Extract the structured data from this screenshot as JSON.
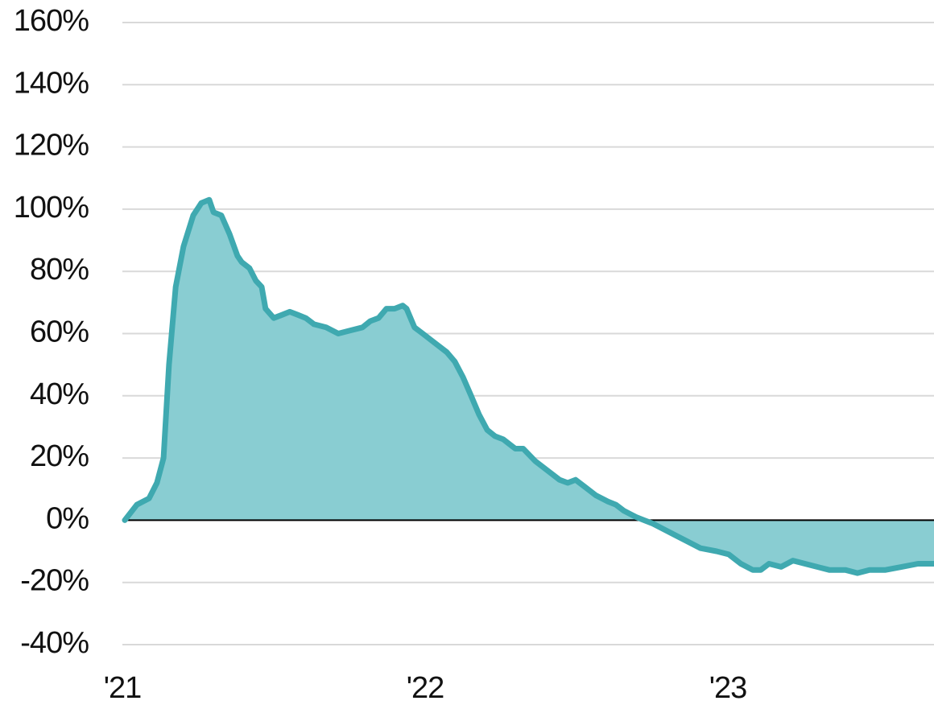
{
  "chart_data": {
    "type": "area",
    "x": [
      2021.008,
      2021.048,
      2021.088,
      2021.114,
      2021.136,
      2021.154,
      2021.176,
      2021.202,
      2021.234,
      2021.261,
      2021.287,
      2021.301,
      2021.327,
      2021.354,
      2021.38,
      2021.394,
      2021.42,
      2021.441,
      2021.46,
      2021.473,
      2021.5,
      2021.527,
      2021.553,
      2021.58,
      2021.606,
      2021.633,
      2021.673,
      2021.713,
      2021.753,
      2021.793,
      2021.819,
      2021.846,
      2021.872,
      2021.899,
      2021.926,
      2021.939,
      2021.965,
      2021.992,
      2022.032,
      2022.072,
      2022.098,
      2022.125,
      2022.152,
      2022.178,
      2022.205,
      2022.231,
      2022.258,
      2022.298,
      2022.324,
      2022.364,
      2022.404,
      2022.444,
      2022.471,
      2022.497,
      2022.524,
      2022.564,
      2022.604,
      2022.63,
      2022.657,
      2022.697,
      2022.723,
      2022.75,
      2022.79,
      2022.83,
      2022.87,
      2022.91,
      2022.963,
      2023.003,
      2023.043,
      2023.082,
      2023.109,
      2023.136,
      2023.176,
      2023.215,
      2023.255,
      2023.295,
      2023.335,
      2023.388,
      2023.428,
      2023.468,
      2023.521,
      2023.574,
      2023.628,
      2023.681
    ],
    "series": [
      {
        "color": "#3fa9b0",
        "fill": "#89cdd2",
        "values": [
          0,
          5,
          7,
          12,
          20,
          50,
          75,
          88,
          98,
          102,
          103,
          99,
          98,
          92,
          85,
          83,
          81,
          77,
          75,
          68,
          65,
          66,
          67,
          66,
          65,
          63,
          62,
          60,
          61,
          62,
          64,
          65,
          68,
          68,
          69,
          68,
          62,
          60,
          57,
          54,
          51,
          46,
          40,
          34,
          29,
          27,
          26,
          23,
          23,
          19,
          16,
          13,
          12,
          13,
          11,
          8,
          6,
          5,
          3,
          1,
          0,
          -1,
          -3,
          -5,
          -7,
          -9,
          -10,
          -11,
          -14,
          -16,
          -16,
          -14,
          -15,
          -13,
          -14,
          -15,
          -16,
          -16,
          -17,
          -16,
          -16,
          -15,
          -14,
          -14
        ]
      }
    ],
    "xlim": [
      2021,
      2023.681
    ],
    "xticks": [
      {
        "value": 2021,
        "label": "'21"
      },
      {
        "value": 2022,
        "label": "'22"
      },
      {
        "value": 2023,
        "label": "'23"
      }
    ],
    "ylim": [
      -40,
      160
    ],
    "yticks": [
      {
        "value": -40,
        "label": "-40%"
      },
      {
        "value": -20,
        "label": "-20%"
      },
      {
        "value": 0,
        "label": "0%"
      },
      {
        "value": 20,
        "label": "20%"
      },
      {
        "value": 40,
        "label": "40%"
      },
      {
        "value": 60,
        "label": "60%"
      },
      {
        "value": 80,
        "label": "80%"
      },
      {
        "value": 100,
        "label": "100%"
      },
      {
        "value": 120,
        "label": "120%"
      },
      {
        "value": 140,
        "label": "140%"
      },
      {
        "value": 160,
        "label": "160%"
      }
    ],
    "grid": true
  }
}
